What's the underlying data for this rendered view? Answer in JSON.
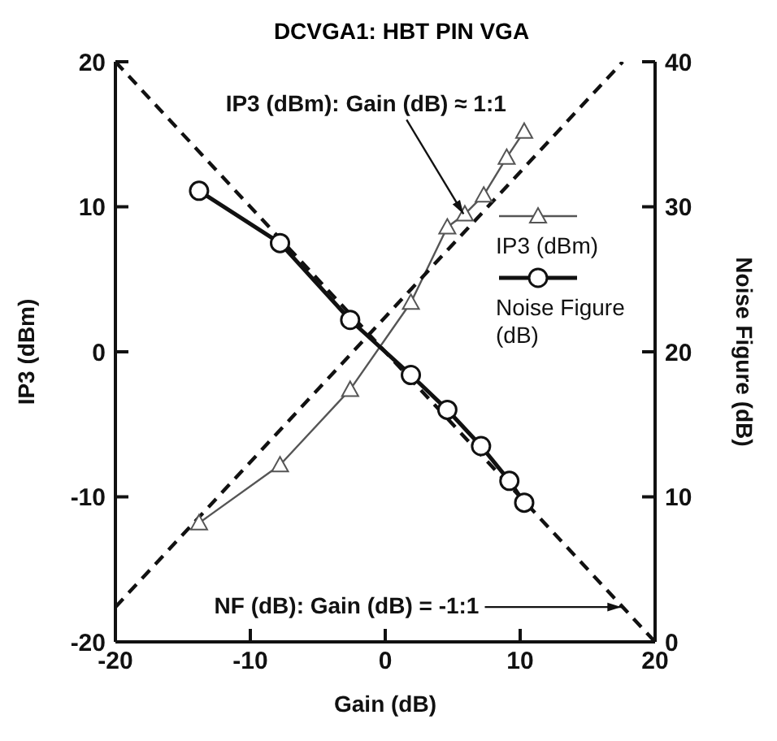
{
  "chart_data": {
    "type": "line",
    "title": "DCVGA1: HBT PIN VGA",
    "xlabel": "Gain (dB)",
    "ylabel": "IP3 (dBm)",
    "y2label": "Noise Figure (dB)",
    "xlim": [
      -20,
      20
    ],
    "xticks": [
      -20,
      -10,
      0,
      10,
      20
    ],
    "ylim": [
      -20,
      20
    ],
    "yticks": [
      -20,
      -10,
      0,
      10,
      20
    ],
    "y2lim": [
      0,
      40
    ],
    "y2ticks": [
      0,
      10,
      20,
      30,
      40
    ],
    "grid": false,
    "legend": "right",
    "series": [
      {
        "name": "IP3 (dBm)",
        "color": "#555555",
        "marker": "triangle",
        "line_style": "solid",
        "x": [
          -13.8,
          -7.8,
          -2.6,
          1.9,
          4.6,
          5.9,
          7.3,
          9.0,
          10.3
        ],
        "values": [
          -11.8,
          -7.8,
          -2.6,
          3.4,
          8.6,
          9.5,
          10.8,
          13.4,
          15.2
        ]
      },
      {
        "name": "Noise Figure (dB)",
        "color": "#111111",
        "marker": "circle",
        "line_style": "solid",
        "axis": "y2",
        "x": [
          -13.8,
          -7.8,
          -2.6,
          1.9,
          4.6,
          7.1,
          9.2,
          10.3
        ],
        "values": [
          31.1,
          27.5,
          22.2,
          18.4,
          16.0,
          13.5,
          11.1,
          9.6
        ]
      },
      {
        "color": "#111111",
        "marker": "none",
        "line_style": "dashed",
        "x": [
          -20,
          17.6
        ],
        "values": [
          -17.6,
          20
        ]
      },
      {
        "color": "#111111",
        "marker": "none",
        "line_style": "dashed",
        "axis": "y2",
        "x": [
          -20,
          20
        ],
        "values": [
          40,
          0
        ]
      }
    ],
    "annotations": [
      {
        "text": "IP3 (dBm): Gain (dB) ≈ 1:1",
        "x": 5.8,
        "y": 9.5
      },
      {
        "text": "NF (dB): Gain (dB) = -1:1",
        "x": 17.5,
        "y": -17.6
      }
    ]
  }
}
